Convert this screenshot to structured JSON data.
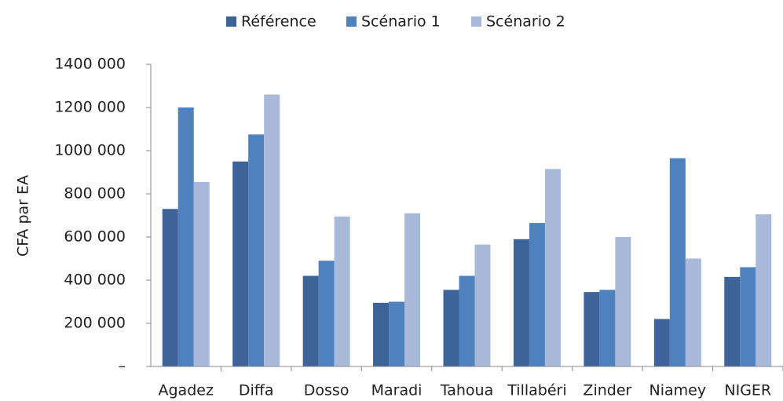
{
  "chart_data": {
    "type": "bar",
    "y_label": "CFA par EA",
    "categories": [
      "Agadez",
      "Diffa",
      "Dosso",
      "Maradi",
      "Tahoua",
      "Tillabéri",
      "Zinder",
      "Niamey",
      "NIGER"
    ],
    "series": [
      {
        "name": "Référence",
        "color": "#3e6399",
        "values": [
          730000,
          950000,
          420000,
          295000,
          355000,
          590000,
          345000,
          220000,
          415000
        ]
      },
      {
        "name": "Scénario 1",
        "color": "#4f81bd",
        "values": [
          1200000,
          1075000,
          490000,
          300000,
          420000,
          665000,
          355000,
          965000,
          460000
        ]
      },
      {
        "name": "Scénario 2",
        "color": "#a9b9da",
        "values": [
          855000,
          1260000,
          695000,
          710000,
          565000,
          915000,
          600000,
          500000,
          705000
        ]
      }
    ],
    "ylim": [
      0,
      1400000
    ],
    "yticks": [
      {
        "value": 0,
        "label": "–"
      },
      {
        "value": 200000,
        "label": "200 000"
      },
      {
        "value": 400000,
        "label": "400 000"
      },
      {
        "value": 600000,
        "label": "600 000"
      },
      {
        "value": 800000,
        "label": "800 000"
      },
      {
        "value": 1000000,
        "label": "1000 000"
      },
      {
        "value": 1200000,
        "label": "1200 000"
      },
      {
        "value": 1400000,
        "label": "1400 000"
      }
    ],
    "legend": "top"
  }
}
